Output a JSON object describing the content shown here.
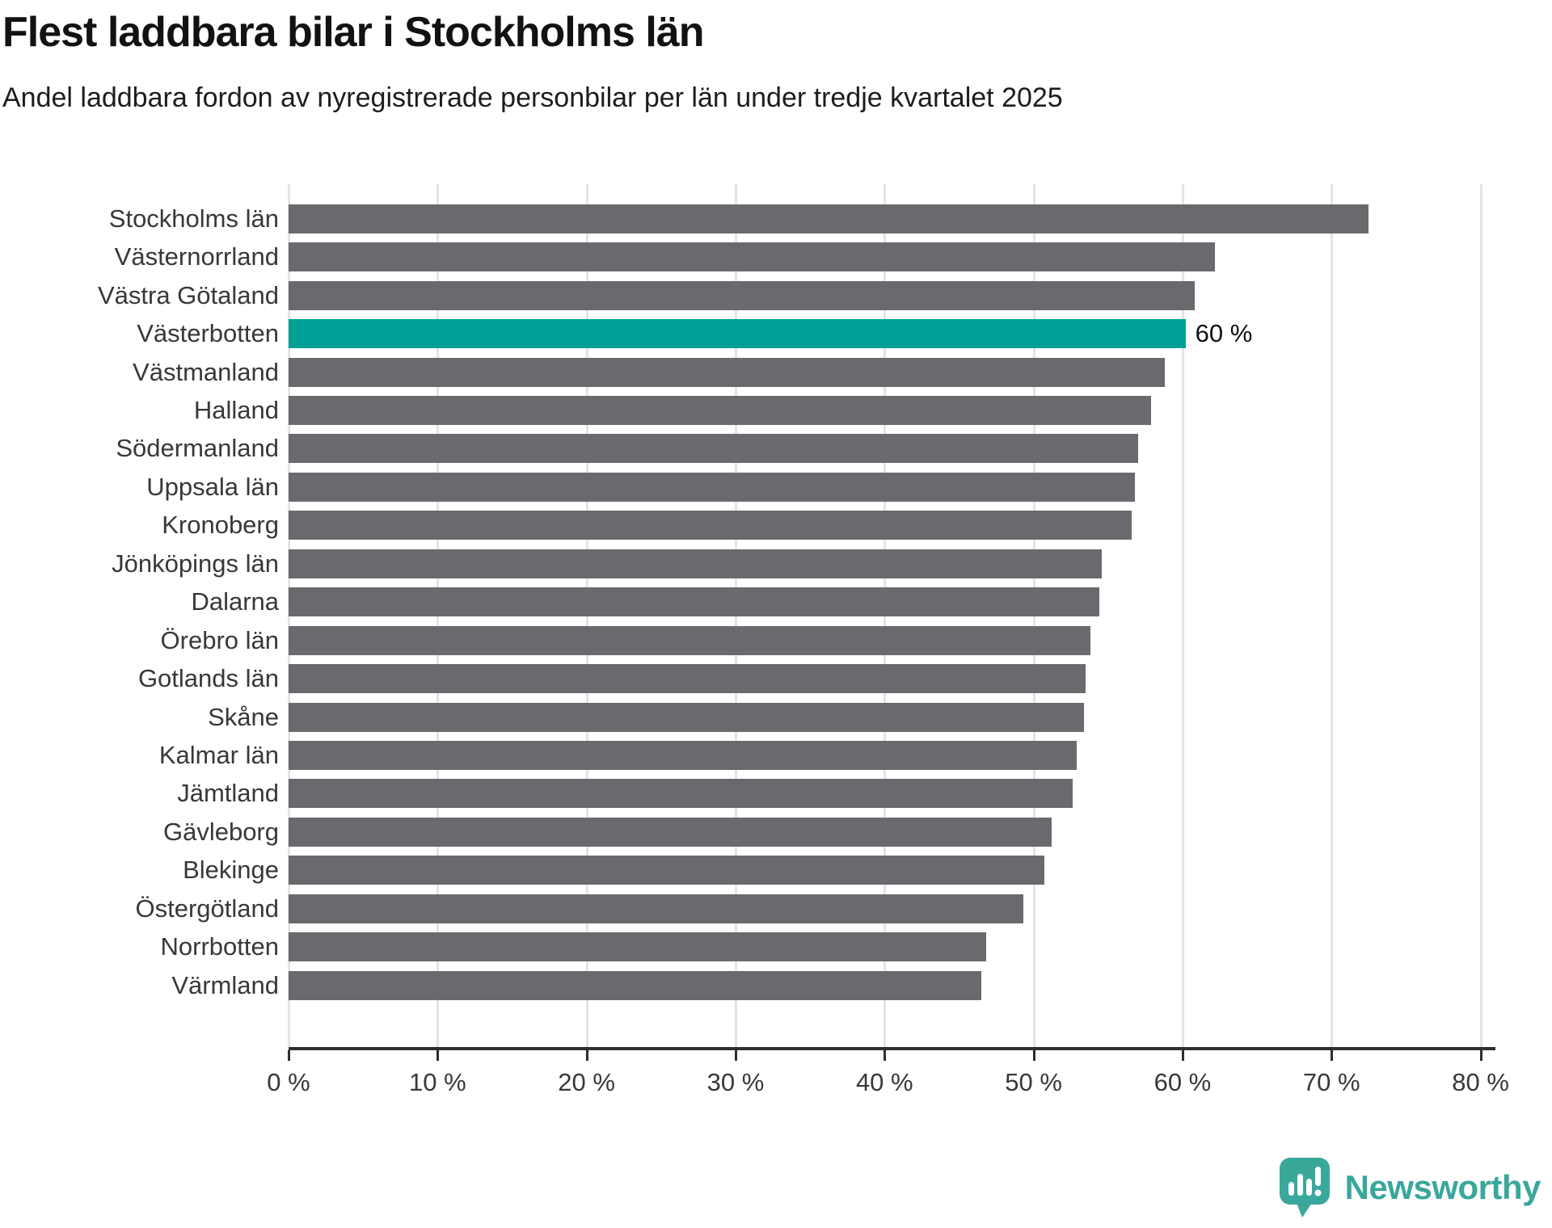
{
  "title": "Flest laddbara bilar i Stockholms län",
  "subtitle": "Andel laddbara fordon av nyregistrerade personbilar per län under tredje kvartalet 2025",
  "chart_data": {
    "type": "bar",
    "orientation": "horizontal",
    "title": "Flest laddbara bilar i Stockholms län",
    "subtitle": "Andel laddbara fordon av nyregistrerade personbilar per län under tredje kvartalet 2025",
    "xlabel": "",
    "ylabel": "",
    "xlim": [
      0,
      81
    ],
    "grid": true,
    "unit": "%",
    "categories": [
      "Stockholms län",
      "Västernorrland",
      "Västra Götaland",
      "Västerbotten",
      "Västmanland",
      "Halland",
      "Södermanland",
      "Uppsala län",
      "Kronoberg",
      "Jönköpings län",
      "Dalarna",
      "Örebro län",
      "Gotlands län",
      "Skåne",
      "Kalmar län",
      "Jämtland",
      "Gävleborg",
      "Blekinge",
      "Östergötland",
      "Norrbotten",
      "Värmland"
    ],
    "values": [
      72.5,
      62.2,
      60.8,
      60.2,
      58.8,
      57.9,
      57.0,
      56.8,
      56.6,
      54.6,
      54.4,
      53.8,
      53.5,
      53.4,
      52.9,
      52.6,
      51.2,
      50.7,
      49.3,
      46.8,
      46.5
    ],
    "highlight": {
      "index": 3,
      "category": "Västerbotten",
      "value_label": "60 %"
    },
    "x_ticks": [
      {
        "label": "0 %",
        "v": 0
      },
      {
        "label": "10 %",
        "v": 10
      },
      {
        "label": "20 %",
        "v": 20
      },
      {
        "label": "30 %",
        "v": 30
      },
      {
        "label": "40 %",
        "v": 40
      },
      {
        "label": "50 %",
        "v": 50
      },
      {
        "label": "60 %",
        "v": 60
      },
      {
        "label": "70 %",
        "v": 70
      },
      {
        "label": "80 %",
        "v": 80
      }
    ],
    "colors": {
      "bar": "#6a6a6e",
      "highlight": "#00a096",
      "grid": "#e4e4e4",
      "axis": "#2e2e2e",
      "text": "#383838"
    }
  },
  "branding": {
    "logo_text": "Newsworthy",
    "logo_color": "#3aa79b",
    "logo_icon": "newsworthy-speech-bubble-chart-icon"
  }
}
